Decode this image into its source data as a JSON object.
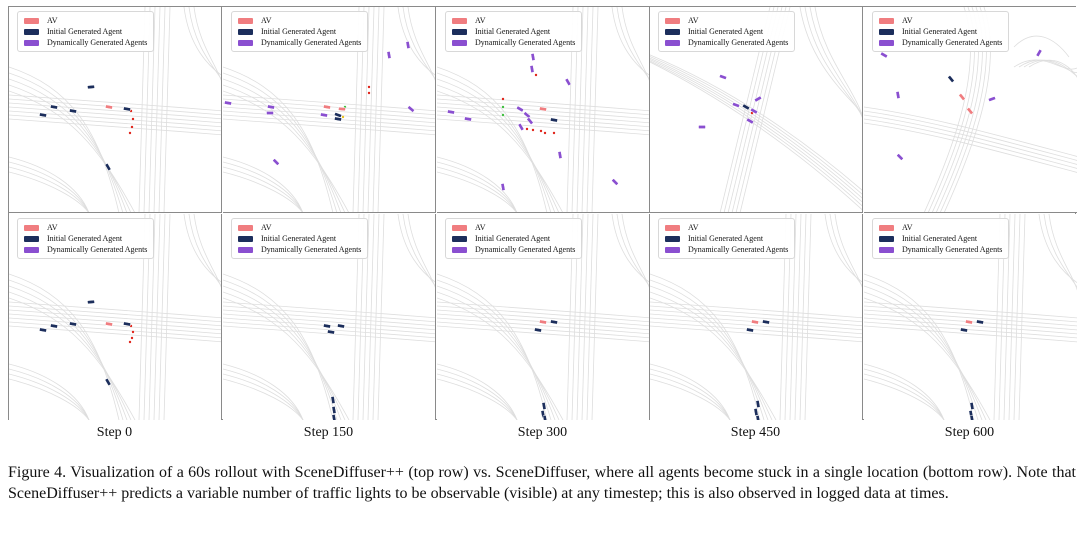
{
  "legend": {
    "items": [
      {
        "label": "AV",
        "color": "#f07d80"
      },
      {
        "label": "Initial Generated Agent",
        "color": "#1c2e5c"
      },
      {
        "label": "Dynamically Generated Agents",
        "color": "#8a4fd0"
      }
    ]
  },
  "steps": [
    "Step 0",
    "Step 150",
    "Step 300",
    "Step 450",
    "Step 600"
  ],
  "rows": [
    "SceneDiffuser++ (top row)",
    "SceneDiffuser (bottom row)"
  ],
  "caption": "Figure 4.  Visualization of a 60s rollout with SceneDiffuser++ (top row) vs.  SceneDiffuser, where all agents become stuck in a single location (bottom row). Note that SceneDiffuser++ predicts a variable number of traffic lights to be observable (visible) at any timestep; this is also observed in logged data at times.",
  "colors": {
    "av": "#f07d80",
    "initial_agent": "#1c2e5c",
    "dynamic_agent": "#8a4fd0",
    "traffic_light_red": "#e0261c",
    "traffic_light_green": "#3fbf3f",
    "traffic_light_yellow": "#e8c020",
    "road": "#dedede"
  }
}
